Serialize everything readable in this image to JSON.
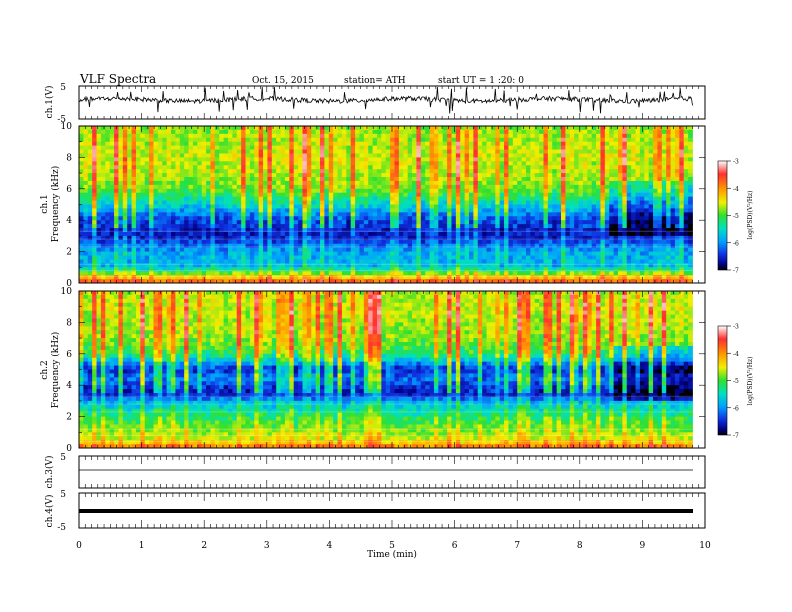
{
  "header": {
    "title": "VLF  Spectra",
    "date": "Oct. 15, 2015",
    "station": "station= ATH",
    "start": "start  UT =   1  :20: 0"
  },
  "colorbar": {
    "label": "log(PSD)(V²/Hz)",
    "ticks": [
      "-3",
      "-4",
      "-5",
      "-6",
      "-7"
    ],
    "colors": [
      "#ffffff",
      "#ff3030",
      "#ff9a00",
      "#f0f000",
      "#30e030",
      "#00e0c0",
      "#00a0ff",
      "#1030e0",
      "#000080",
      "#000000"
    ]
  },
  "chart_data": [
    {
      "type": "line",
      "panel": "ch1-waveform",
      "ylabel": "ch.1(V)",
      "ylim": [
        -5,
        5
      ],
      "ytick_labels": [
        "5",
        "-5"
      ],
      "x_range_min": [
        0,
        9.8
      ],
      "note_values": "noisy waveform centered near 0 V with spikes to about ±4 V"
    },
    {
      "type": "heatmap",
      "panel": "ch1-spectrogram",
      "ylabel": "ch.1",
      "ylabel2": "Frequency (kHz)",
      "ylim": [
        0,
        10
      ],
      "ytick_labels": [
        "10",
        "8",
        "6",
        "4",
        "2",
        "0"
      ],
      "zlim": [
        -7,
        -3
      ],
      "x_range_min": [
        0,
        9.8
      ],
      "band_profile_khz": [
        [
          0.0,
          -3.8
        ],
        [
          0.5,
          -4.8
        ],
        [
          1.0,
          -5.9
        ],
        [
          2.0,
          -6.0
        ],
        [
          3.0,
          -6.6
        ],
        [
          4.0,
          -6.5
        ],
        [
          5.0,
          -5.8
        ],
        [
          6.0,
          -5.2
        ],
        [
          7.0,
          -5.0
        ],
        [
          8.0,
          -4.9
        ],
        [
          9.0,
          -5.0
        ],
        [
          10.0,
          -5.1
        ]
      ]
    },
    {
      "type": "heatmap",
      "panel": "ch2-spectrogram",
      "ylabel": "ch.2",
      "ylabel2": "Frequency (kHz)",
      "ylim": [
        0,
        10
      ],
      "ytick_labels": [
        "10",
        "8",
        "6",
        "4",
        "2",
        "0"
      ],
      "zlim": [
        -7,
        -3
      ],
      "x_range_min": [
        0,
        9.8
      ],
      "band_profile_khz": [
        [
          0.0,
          -4.0
        ],
        [
          0.5,
          -4.8
        ],
        [
          1.0,
          -5.0
        ],
        [
          2.0,
          -5.4
        ],
        [
          3.0,
          -6.0
        ],
        [
          3.5,
          -6.7
        ],
        [
          4.5,
          -6.2
        ],
        [
          5.0,
          -6.6
        ],
        [
          6.0,
          -5.4
        ],
        [
          7.0,
          -5.1
        ],
        [
          8.0,
          -5.0
        ],
        [
          9.0,
          -4.9
        ],
        [
          10.0,
          -5.0
        ]
      ]
    },
    {
      "type": "line",
      "panel": "ch3-waveform",
      "ylabel": "ch.3(V)",
      "ylim": [
        -5,
        5
      ],
      "ytick_labels": [
        "5"
      ],
      "x_range_min": [
        0,
        9.8
      ],
      "note_values": "nearly flat line near 0 V"
    },
    {
      "type": "line",
      "panel": "ch4-waveform",
      "ylabel": "ch.4(V)",
      "ylim": [
        -5,
        5
      ],
      "ytick_labels": [
        "5",
        "-5"
      ],
      "x_range_min": [
        0,
        9.8
      ],
      "note_values": "thick flat trace near 0 V"
    }
  ],
  "xaxis": {
    "label": "Time  (min)",
    "ticks": [
      "0",
      "1",
      "2",
      "3",
      "4",
      "5",
      "6",
      "7",
      "8",
      "9",
      "10"
    ],
    "xlim": [
      0,
      10
    ]
  }
}
